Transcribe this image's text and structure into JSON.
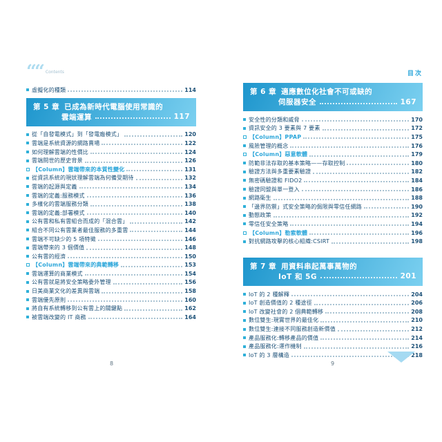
{
  "colors": {
    "page_bg": "#ffffff",
    "chapter_box_top": "#1e96cd",
    "chapter_box_bottom": "#7bd0f0",
    "chapter_text": "#ffffff",
    "item_text": "#1d5178",
    "column_text": "#2ba6da",
    "bullet": "#2fb0d9",
    "leader": "#a9c3d2",
    "header_label": "#2ba6da",
    "logo": "#aedcf0",
    "logo_text": "#a2bfcf",
    "folio": "#5f7482",
    "triangle": "#a5daf2"
  },
  "left_page": {
    "logo_quote": "““",
    "logo_label": "Contents",
    "intro_items": [
      {
        "type": "item",
        "text": "虛擬化的種類",
        "page": "114"
      }
    ],
    "chapter": {
      "label": "第 5 章",
      "title_line1": "已成為新時代電腦使用常識的",
      "title_line2": "雲端運算",
      "page": "117"
    },
    "items": [
      {
        "type": "item",
        "text": "從「自發電模式」到「發電廠模式」",
        "page": "120"
      },
      {
        "type": "item",
        "text": "雲端是系統資源的網路賣場",
        "page": "122"
      },
      {
        "type": "item",
        "text": "如何理解雲端的性價比",
        "page": "124"
      },
      {
        "type": "item",
        "text": "雲端問世的歷史背景",
        "page": "126"
      },
      {
        "type": "column",
        "text": "【Column】雲端帶來的本質性變化",
        "page": "131"
      },
      {
        "type": "item",
        "text": "從資訊系統的現狀理解雲端為何備受期待",
        "page": "132"
      },
      {
        "type": "item",
        "text": "雲端的起源與定義",
        "page": "134"
      },
      {
        "type": "item",
        "text": "雲端的定義:服務模式",
        "page": "136"
      },
      {
        "type": "item",
        "text": "多樣化的雲端服務分類",
        "page": "138"
      },
      {
        "type": "item",
        "text": "雲端的定義:部署模式",
        "page": "140"
      },
      {
        "type": "item",
        "text": "公有雲和私有雲組合而成的「混合雲」",
        "page": "142"
      },
      {
        "type": "item",
        "text": "組合不同公有雲業者最佳服務的多重雲",
        "page": "144"
      },
      {
        "type": "item",
        "text": "雲端不可缺少的 5 項特徵",
        "page": "146"
      },
      {
        "type": "item",
        "text": "雲端帶來的 3 個價值",
        "page": "148"
      },
      {
        "type": "item",
        "text": "公有雲的經濟",
        "page": "150"
      },
      {
        "type": "column",
        "text": "【Column】雲端帶來的典範轉移",
        "page": "153"
      },
      {
        "type": "item",
        "text": "雲端運算的商業模式",
        "page": "154"
      },
      {
        "type": "item",
        "text": "公有雲就是將安全策略委外管理",
        "page": "156"
      },
      {
        "type": "item",
        "text": "日美商業文化的差異與雲端",
        "page": "158"
      },
      {
        "type": "item",
        "text": "雲端優先原則",
        "page": "160"
      },
      {
        "type": "item",
        "text": "將自有系統轉移到公有雲上的關鍵點",
        "page": "162"
      },
      {
        "type": "item",
        "text": "被雲端改變的 IT 商務",
        "page": "164"
      }
    ],
    "folio": "8"
  },
  "right_page": {
    "header_label": "目次",
    "chapters": [
      {
        "label": "第 6 章",
        "title_line1": "適應數位化社會不可或缺的",
        "title_line2": "伺服器安全",
        "page": "167",
        "items": [
          {
            "type": "item",
            "text": "安全性的分類和威脅",
            "page": "170"
          },
          {
            "type": "item",
            "text": "資訊安全的 3 要素與 7 要素",
            "page": "172"
          },
          {
            "type": "column",
            "text": "【Column】PPAP",
            "page": "175"
          },
          {
            "type": "item",
            "text": "風險管理的概念",
            "page": "176"
          },
          {
            "type": "column",
            "text": "【Column】惡意軟體",
            "page": "179"
          },
          {
            "type": "item",
            "text": "防範非法存取的基本策略——存取控制",
            "page": "180"
          },
          {
            "type": "item",
            "text": "驗證方法與多重要素驗證",
            "page": "182"
          },
          {
            "type": "item",
            "text": "無密碼驗證和 FIDO2",
            "page": "184"
          },
          {
            "type": "item",
            "text": "驗證同盟與單一登入",
            "page": "186"
          },
          {
            "type": "item",
            "text": "網路衛生",
            "page": "188"
          },
          {
            "type": "item",
            "text": "「邊界防禦」式安全策略的侷限與零信任網路",
            "page": "190"
          },
          {
            "type": "item",
            "text": "動態政策",
            "page": "192"
          },
          {
            "type": "item",
            "text": "零信任安全策略",
            "page": "194"
          },
          {
            "type": "column",
            "text": "【Column】勒索軟體",
            "page": "196"
          },
          {
            "type": "item",
            "text": "對抗網路攻擊的核心組織:CSIRT",
            "page": "198"
          }
        ]
      },
      {
        "label": "第 7 章",
        "title_line1": "用資料串起萬事萬物的",
        "title_line2": "IoT 和 5G",
        "page": "201",
        "items": [
          {
            "type": "item",
            "text": "IoT 的 2 種解釋",
            "page": "204"
          },
          {
            "type": "item",
            "text": "IoT 創造價值的 2 種途徑",
            "page": "206"
          },
          {
            "type": "item",
            "text": "IoT 改變社會的 2 個典範轉移",
            "page": "208"
          },
          {
            "type": "item",
            "text": "數位雙生:現實世界的最佳化",
            "page": "210"
          },
          {
            "type": "item",
            "text": "數位雙生:連接不同服務創造新價值",
            "page": "212"
          },
          {
            "type": "item",
            "text": "產品服務化:轉移產品的價值",
            "page": "214"
          },
          {
            "type": "item",
            "text": "產品服務化:運作機制",
            "page": "216"
          },
          {
            "type": "item",
            "text": "IoT 的 3 層構造",
            "page": "218"
          }
        ]
      }
    ],
    "folio": "9"
  }
}
